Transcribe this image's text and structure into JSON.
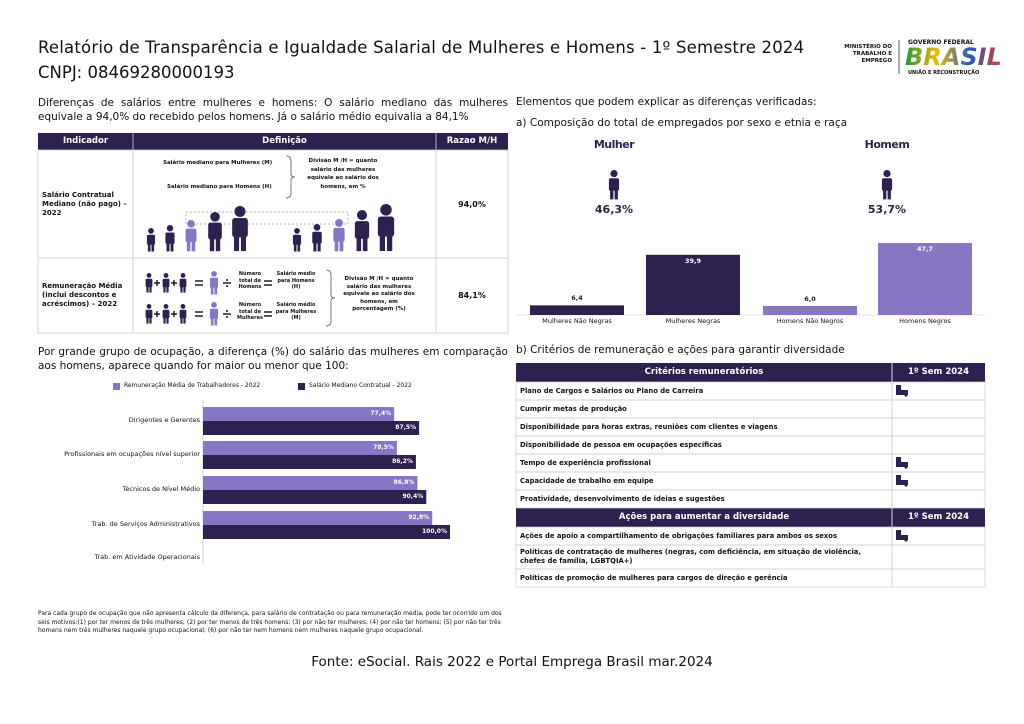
{
  "header": {
    "title": "Relatório de Transparência e Igualdade Salarial de Mulheres e Homens - 1º Semestre 2024",
    "cnpj": "CNPJ: 08469280000193",
    "ministry": "MINISTÉRIO DO TRABALHO E EMPREGO",
    "logo_top": "GOVERNO FEDERAL",
    "logo_main": "BRASIL",
    "logo_bottom": "UNIÃO E RECONSTRUÇÃO"
  },
  "salary": {
    "intro": "Diferenças de salários entre mulheres e homens: O salário mediano das mulheres equivale a 94,0% do recebido pelos homens. Já o salário médio equivalia a 84,1%",
    "table": {
      "headers": [
        "Indicador",
        "Definição",
        "Razao M/H"
      ],
      "rows": [
        {
          "indicator": "Salário Contratual Mediano (não pago) – 2022",
          "definition": {
            "women": "Salário mediano para Mulheres (M)",
            "men": "Salário mediano para Homens (H)",
            "division": "Divisão M /H = quanto salário das mulheres equivale ao salário dos homens, em %"
          },
          "ratio": "94,0%"
        },
        {
          "indicator": "Remuneração Média (inclui descontos e acréscimos) – 2022",
          "definition": {
            "men_total": "Número total de Homens",
            "men_salary": "Salário médio para Homens (H)",
            "women_total": "Número total de Mulheres",
            "women_salary": "Salário médio para Mulheres (M)",
            "division": "Divisão M /H = quanto salário das mulheres equivale ao salário dos homens, em porcentagem (%)"
          },
          "ratio": "84,1%"
        }
      ]
    }
  },
  "composition": {
    "heading": "Elementos que podem explicar as diferenças verificadas:",
    "subtitle": "a) Composição do total de empregados por sexo e etnia e raça",
    "groups": [
      {
        "label": "Mulher",
        "share": "46,3%"
      },
      {
        "label": "Homem",
        "share": "53,7%"
      }
    ],
    "chart": {
      "type": "bar",
      "categories": [
        "Mulheres Não Negras",
        "Mulheres Negras",
        "Homens Não Negros",
        "Homens Negros"
      ],
      "values": [
        6.4,
        39.9,
        6.0,
        47.7
      ],
      "value_labels": [
        "6,4",
        "39,9",
        "6,0",
        "47,7"
      ],
      "colors": [
        "#2e2150",
        "#2e2150",
        "#8676c4",
        "#8676c4"
      ]
    }
  },
  "occupation": {
    "title": "Por grande grupo de ocupação, a diferença (%) do salário das mulheres em comparação aos homens, aparece quando for maior ou menor que 100:",
    "chart": {
      "type": "bar",
      "orientation": "horizontal",
      "categories": [
        "Dirigentes e Gerentes",
        "Profissionais em ocupações nível superior",
        "Técnicos de Nível Médio",
        "Trab. de Serviços Administrativos",
        "Trab. em Atividade Operacionais"
      ],
      "series": [
        {
          "name": "Remuneração Média de Trabalhadores - 2022",
          "color": "#8676c4",
          "values": [
            77.4,
            78.5,
            86.8,
            92.8,
            null
          ],
          "value_labels": [
            "77,4%",
            "78,5%",
            "86,8%",
            "92,8%",
            null
          ]
        },
        {
          "name": "Salário Mediano Contratual - 2022",
          "color": "#2e2150",
          "values": [
            87.5,
            86.2,
            90.4,
            100.0,
            null
          ],
          "value_labels": [
            "87,5%",
            "86,2%",
            "90,4%",
            "100,0%",
            null
          ]
        }
      ]
    },
    "footnote": "Para cada grupo de ocupação que não apresenta cálculo da diferença, para salário de contratação ou para remuneração média, pode ter ocorrido um dos seis motivos:(1) por ter menos de três mulheres; (2) por ter menos de três homens; (3) por não ter mulheres; (4) por não ter homens; (5) por não ter três homens nem três mulheres naquele grupo ocupacional; (6) por não ter nem homens nem mulheres naquele grupo ocupacional."
  },
  "criteria": {
    "title": "b) Critérios de remuneração e ações para garantir diversidade",
    "sections": [
      {
        "headers": [
          "Critérios remuneratórios",
          "1º Sem 2024"
        ],
        "rows": [
          {
            "label": "Plano de Cargos e Salários ou Plano de Carreira",
            "checked": true
          },
          {
            "label": "Cumprir metas de produção",
            "checked": false
          },
          {
            "label": "Disponibilidade para horas extras, reuniões com clientes e viagens",
            "checked": false
          },
          {
            "label": "Disponibilidade de pessoa em ocupações específicas",
            "checked": false
          },
          {
            "label": "Tempo de experiência profissional",
            "checked": true
          },
          {
            "label": "Capacidade de trabalho em equipe",
            "checked": true
          },
          {
            "label": "Proatividade, desenvolvimento de ideias e sugestões",
            "checked": false
          }
        ]
      },
      {
        "headers": [
          "Ações para aumentar a diversidade",
          "1º Sem 2024"
        ],
        "rows": [
          {
            "label": "Ações de apoio a compartilhamento de obrigações familiares para ambos os sexos",
            "checked": true
          },
          {
            "label": "Políticas de contratação de mulheres (negras, com deficiência, em situação de violência, chefes de família, LGBTQIA+)",
            "checked": false
          },
          {
            "label": "Políticas de promoção de mulheres para cargos de direção e gerência",
            "checked": false
          }
        ]
      }
    ]
  },
  "source": "Fonte: eSocial. Rais 2022 e Portal Emprega Brasil mar.2024"
}
